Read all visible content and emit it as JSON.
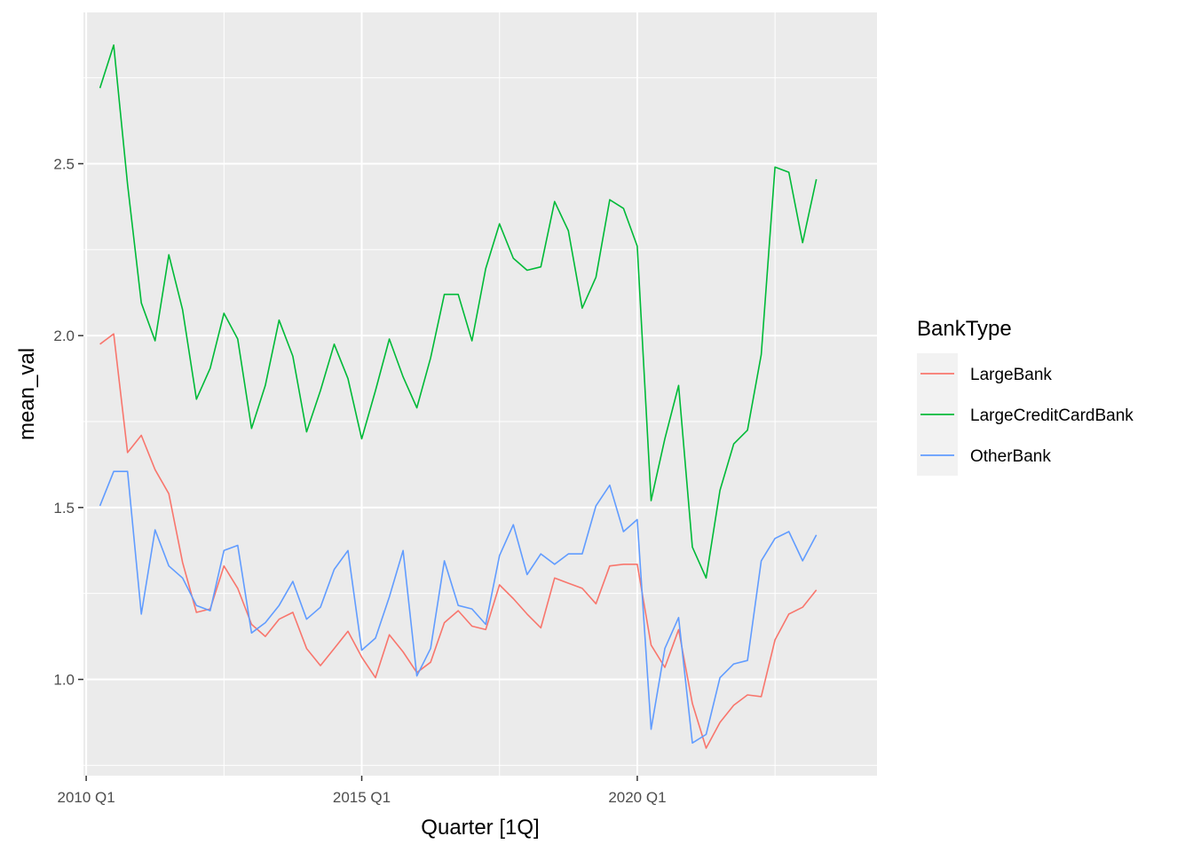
{
  "chart_data": {
    "type": "line",
    "xlabel": "Quarter [1Q]",
    "ylabel": "mean_val",
    "x_ticks": [
      {
        "label": "2010 Q1",
        "value": 2010.0
      },
      {
        "label": "2015 Q1",
        "value": 2015.0
      },
      {
        "label": "2020 Q1",
        "value": 2020.0
      }
    ],
    "y_ticks": [
      {
        "label": "1.0",
        "value": 1.0
      },
      {
        "label": "1.5",
        "value": 1.5
      },
      {
        "label": "2.0",
        "value": 2.0
      },
      {
        "label": "2.5",
        "value": 2.5
      }
    ],
    "xlim": [
      2009.95,
      2024.35
    ],
    "ylim": [
      0.72,
      2.94
    ],
    "grid": true,
    "legend": {
      "title": "BankType",
      "position": "right"
    },
    "x_start": "2010 Q2",
    "x_step": "1 quarter",
    "series": [
      {
        "name": "LargeBank",
        "color": "#F8766D",
        "values": [
          1.975,
          2.005,
          1.66,
          1.71,
          1.61,
          1.54,
          1.34,
          1.195,
          1.205,
          1.33,
          1.265,
          1.16,
          1.125,
          1.175,
          1.195,
          1.09,
          1.04,
          1.09,
          1.14,
          1.065,
          1.005,
          1.13,
          1.08,
          1.02,
          1.05,
          1.165,
          1.2,
          1.155,
          1.145,
          1.275,
          1.235,
          1.19,
          1.15,
          1.295,
          1.28,
          1.265,
          1.22,
          1.33,
          1.335,
          1.335,
          1.1,
          1.035,
          1.145,
          0.93,
          0.8,
          0.875,
          0.925,
          0.955,
          0.95,
          1.115,
          1.19,
          1.21,
          1.26
        ]
      },
      {
        "name": "LargeCreditCardBank",
        "color": "#00BA38",
        "values": [
          2.72,
          2.845,
          2.44,
          2.095,
          1.985,
          2.235,
          2.075,
          1.815,
          1.905,
          2.065,
          1.99,
          1.73,
          1.855,
          2.045,
          1.94,
          1.72,
          1.84,
          1.975,
          1.875,
          1.7,
          1.84,
          1.99,
          1.88,
          1.79,
          1.935,
          2.12,
          2.12,
          1.985,
          2.195,
          2.325,
          2.225,
          2.19,
          2.2,
          2.39,
          2.305,
          2.08,
          2.17,
          2.395,
          2.37,
          2.26,
          1.52,
          1.7,
          1.855,
          1.385,
          1.295,
          1.55,
          1.685,
          1.725,
          1.945,
          2.49,
          2.475,
          2.27,
          2.455
        ]
      },
      {
        "name": "OtherBank",
        "color": "#619CFF",
        "values": [
          1.505,
          1.605,
          1.605,
          1.19,
          1.435,
          1.33,
          1.295,
          1.215,
          1.2,
          1.375,
          1.39,
          1.135,
          1.165,
          1.215,
          1.285,
          1.175,
          1.21,
          1.32,
          1.375,
          1.085,
          1.12,
          1.24,
          1.375,
          1.01,
          1.09,
          1.345,
          1.215,
          1.205,
          1.16,
          1.36,
          1.45,
          1.305,
          1.365,
          1.335,
          1.365,
          1.365,
          1.505,
          1.565,
          1.43,
          1.465,
          0.855,
          1.09,
          1.18,
          0.815,
          0.84,
          1.005,
          1.045,
          1.055,
          1.345,
          1.41,
          1.43,
          1.345,
          1.42
        ]
      }
    ]
  }
}
